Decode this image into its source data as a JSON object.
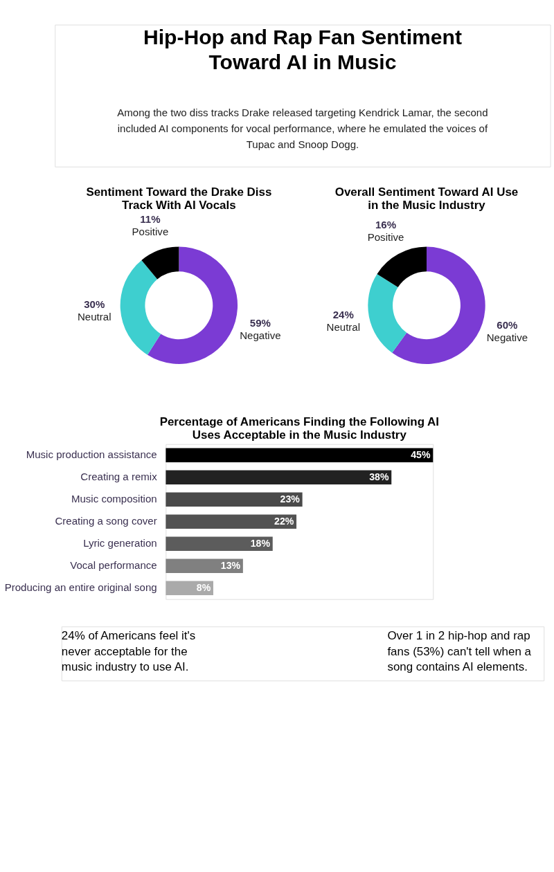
{
  "chart_data": [
    {
      "type": "other",
      "title": "Hip-Hop and Rap Fan Sentiment Toward AI in Music",
      "subtitle": "Among the two diss tracks Drake released targeting Kendrick Lamar, the second included AI components for vocal performance, where he emulated the voices of Tupac and Snoop Dogg."
    },
    {
      "type": "donut",
      "title": "Sentiment Toward the Drake Diss Track With AI Vocals",
      "categories": [
        "Negative",
        "Neutral",
        "Positive"
      ],
      "values": [
        59,
        30,
        11
      ],
      "colors": [
        "#7b3bd4",
        "#3ecfcf",
        "#000000"
      ],
      "value_labels": [
        "59%",
        "30%",
        "11%"
      ]
    },
    {
      "type": "donut",
      "title": "Overall Sentiment Toward AI Use in the Music Industry",
      "categories": [
        "Negative",
        "Neutral",
        "Positive"
      ],
      "values": [
        60,
        24,
        16
      ],
      "colors": [
        "#7b3bd4",
        "#3ecfcf",
        "#000000"
      ],
      "value_labels": [
        "60%",
        "24%",
        "16%"
      ]
    },
    {
      "type": "bar",
      "orientation": "horizontal",
      "title": "Percentage of Americans Finding the Following AI Uses Acceptable in the Music Industry",
      "categories": [
        "Music production assistance",
        "Creating a remix",
        "Music composition",
        "Creating a song cover",
        "Lyric generation",
        "Vocal performance",
        "Producing an entire original song"
      ],
      "values": [
        45,
        38,
        23,
        22,
        18,
        13,
        8
      ],
      "colors": [
        "#000000",
        "#222222",
        "#4a4a4a",
        "#525252",
        "#5c5c5c",
        "#808080",
        "#aaaaaa"
      ],
      "value_labels": [
        "45%",
        "38%",
        "23%",
        "22%",
        "18%",
        "13%",
        "8%"
      ],
      "annotations": [
        "24% of Americans feel it's never acceptable for the music industry to use AI.",
        "Over 1 in 2 hip-hop and rap fans (53%) can't tell when a song contains AI elements."
      ]
    }
  ]
}
